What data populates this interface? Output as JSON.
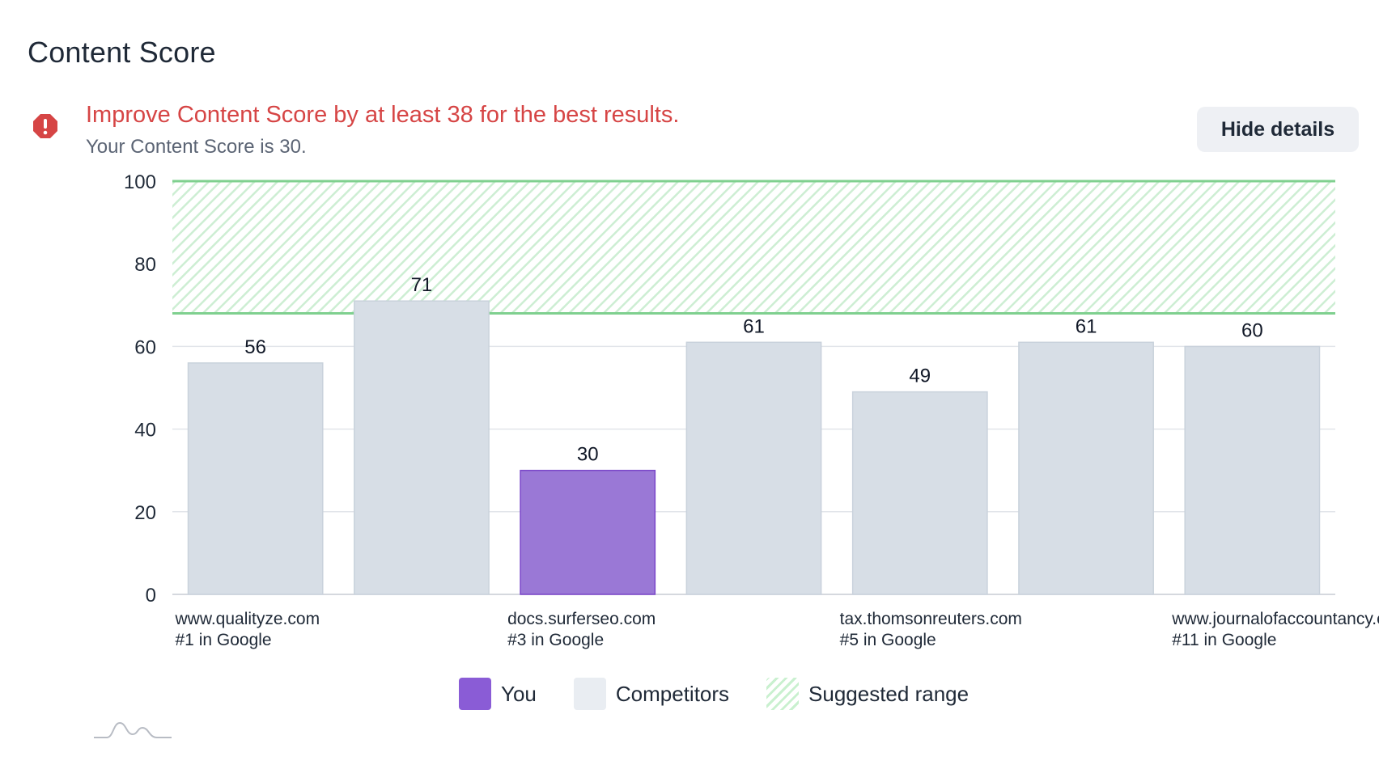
{
  "header": {
    "title": "Content Score"
  },
  "alert": {
    "icon": "exclamation-octagon-icon",
    "color": "#d64545",
    "message": "Improve Content Score by at least 38 for the best results.",
    "sub": "Your Content Score is 30."
  },
  "actions": {
    "hide_details_label": "Hide details"
  },
  "legend": {
    "you": "You",
    "competitors": "Competitors",
    "suggested": "Suggested range"
  },
  "chart_data": {
    "type": "bar",
    "ylim": [
      0,
      100
    ],
    "yticks": [
      0,
      20,
      40,
      60,
      80,
      100
    ],
    "grid": true,
    "suggested_range": [
      68,
      100
    ],
    "colors": {
      "you": "#9a78d6",
      "you_border": "#7a46c9",
      "competitor": "#d7dee6",
      "competitor_border": "#c9d2dc",
      "range": "#7fd08f"
    },
    "bars": [
      {
        "value": 56,
        "is_you": false,
        "site": "www.qualityze.com",
        "rank": "#1 in Google"
      },
      {
        "value": 71,
        "is_you": false,
        "site": "",
        "rank": ""
      },
      {
        "value": 30,
        "is_you": true,
        "site": "docs.surferseo.com",
        "rank": "#3 in Google"
      },
      {
        "value": 61,
        "is_you": false,
        "site": "",
        "rank": ""
      },
      {
        "value": 49,
        "is_you": false,
        "site": "tax.thomsonreuters.com",
        "rank": "#5 in Google"
      },
      {
        "value": 61,
        "is_you": false,
        "site": "",
        "rank": ""
      },
      {
        "value": 60,
        "is_you": false,
        "site": "www.journalofaccountancy.c",
        "rank": "#11 in Google"
      }
    ]
  }
}
